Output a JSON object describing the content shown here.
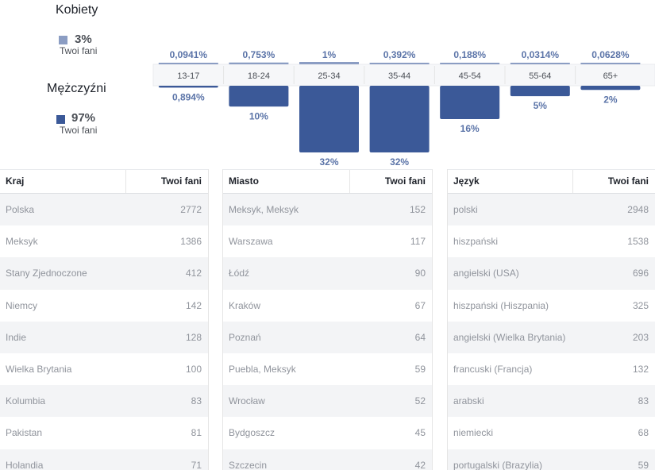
{
  "gender": {
    "women": {
      "label": "Kobiety",
      "percent": "3%",
      "sub": "Twoi fani",
      "color": "#8b9dc3"
    },
    "men": {
      "label": "Mężczyźni",
      "percent": "97%",
      "sub": "Twoi fani",
      "color": "#3b5998"
    }
  },
  "chart_data": {
    "type": "bar",
    "categories": [
      "13-17",
      "18-24",
      "25-34",
      "35-44",
      "45-54",
      "55-64",
      "65+"
    ],
    "series": [
      {
        "name": "Kobiety",
        "labels": [
          "0,0941%",
          "0,753%",
          "1%",
          "0,392%",
          "0,188%",
          "0,0314%",
          "0,0628%"
        ],
        "values": [
          0.0941,
          0.753,
          1,
          0.392,
          0.188,
          0.0314,
          0.0628
        ],
        "color": "#8b9dc3"
      },
      {
        "name": "Mężczyźni",
        "labels": [
          "0,894%",
          "10%",
          "32%",
          "32%",
          "16%",
          "5%",
          "2%"
        ],
        "values": [
          0.894,
          10,
          32,
          32,
          16,
          5,
          2
        ],
        "color": "#3b5998"
      }
    ]
  },
  "tables": [
    {
      "header": {
        "name": "Kraj",
        "value": "Twoi fani"
      },
      "rows": [
        {
          "name": "Polska",
          "value": "2772"
        },
        {
          "name": "Meksyk",
          "value": "1386"
        },
        {
          "name": "Stany Zjednoczone",
          "value": "412"
        },
        {
          "name": "Niemcy",
          "value": "142"
        },
        {
          "name": "Indie",
          "value": "128"
        },
        {
          "name": "Wielka Brytania",
          "value": "100"
        },
        {
          "name": "Kolumbia",
          "value": "83"
        },
        {
          "name": "Pakistan",
          "value": "81"
        },
        {
          "name": "Holandia",
          "value": "71"
        }
      ]
    },
    {
      "header": {
        "name": "Miasto",
        "value": "Twoi fani"
      },
      "rows": [
        {
          "name": "Meksyk, Meksyk",
          "value": "152"
        },
        {
          "name": "Warszawa",
          "value": "117"
        },
        {
          "name": "Łódź",
          "value": "90"
        },
        {
          "name": "Kraków",
          "value": "67"
        },
        {
          "name": "Poznań",
          "value": "64"
        },
        {
          "name": "Puebla, Meksyk",
          "value": "59"
        },
        {
          "name": "Wrocław",
          "value": "52"
        },
        {
          "name": "Bydgoszcz",
          "value": "45"
        },
        {
          "name": "Szczecin",
          "value": "42"
        }
      ]
    },
    {
      "header": {
        "name": "Język",
        "value": "Twoi fani"
      },
      "rows": [
        {
          "name": "polski",
          "value": "2948"
        },
        {
          "name": "hiszpański",
          "value": "1538"
        },
        {
          "name": "angielski (USA)",
          "value": "696"
        },
        {
          "name": "hiszpański (Hiszpania)",
          "value": "325"
        },
        {
          "name": "angielski (Wielka Brytania)",
          "value": "203"
        },
        {
          "name": "francuski (Francja)",
          "value": "132"
        },
        {
          "name": "arabski",
          "value": "83"
        },
        {
          "name": "niemiecki",
          "value": "68"
        },
        {
          "name": "portugalski (Brazylia)",
          "value": "59"
        }
      ]
    }
  ]
}
